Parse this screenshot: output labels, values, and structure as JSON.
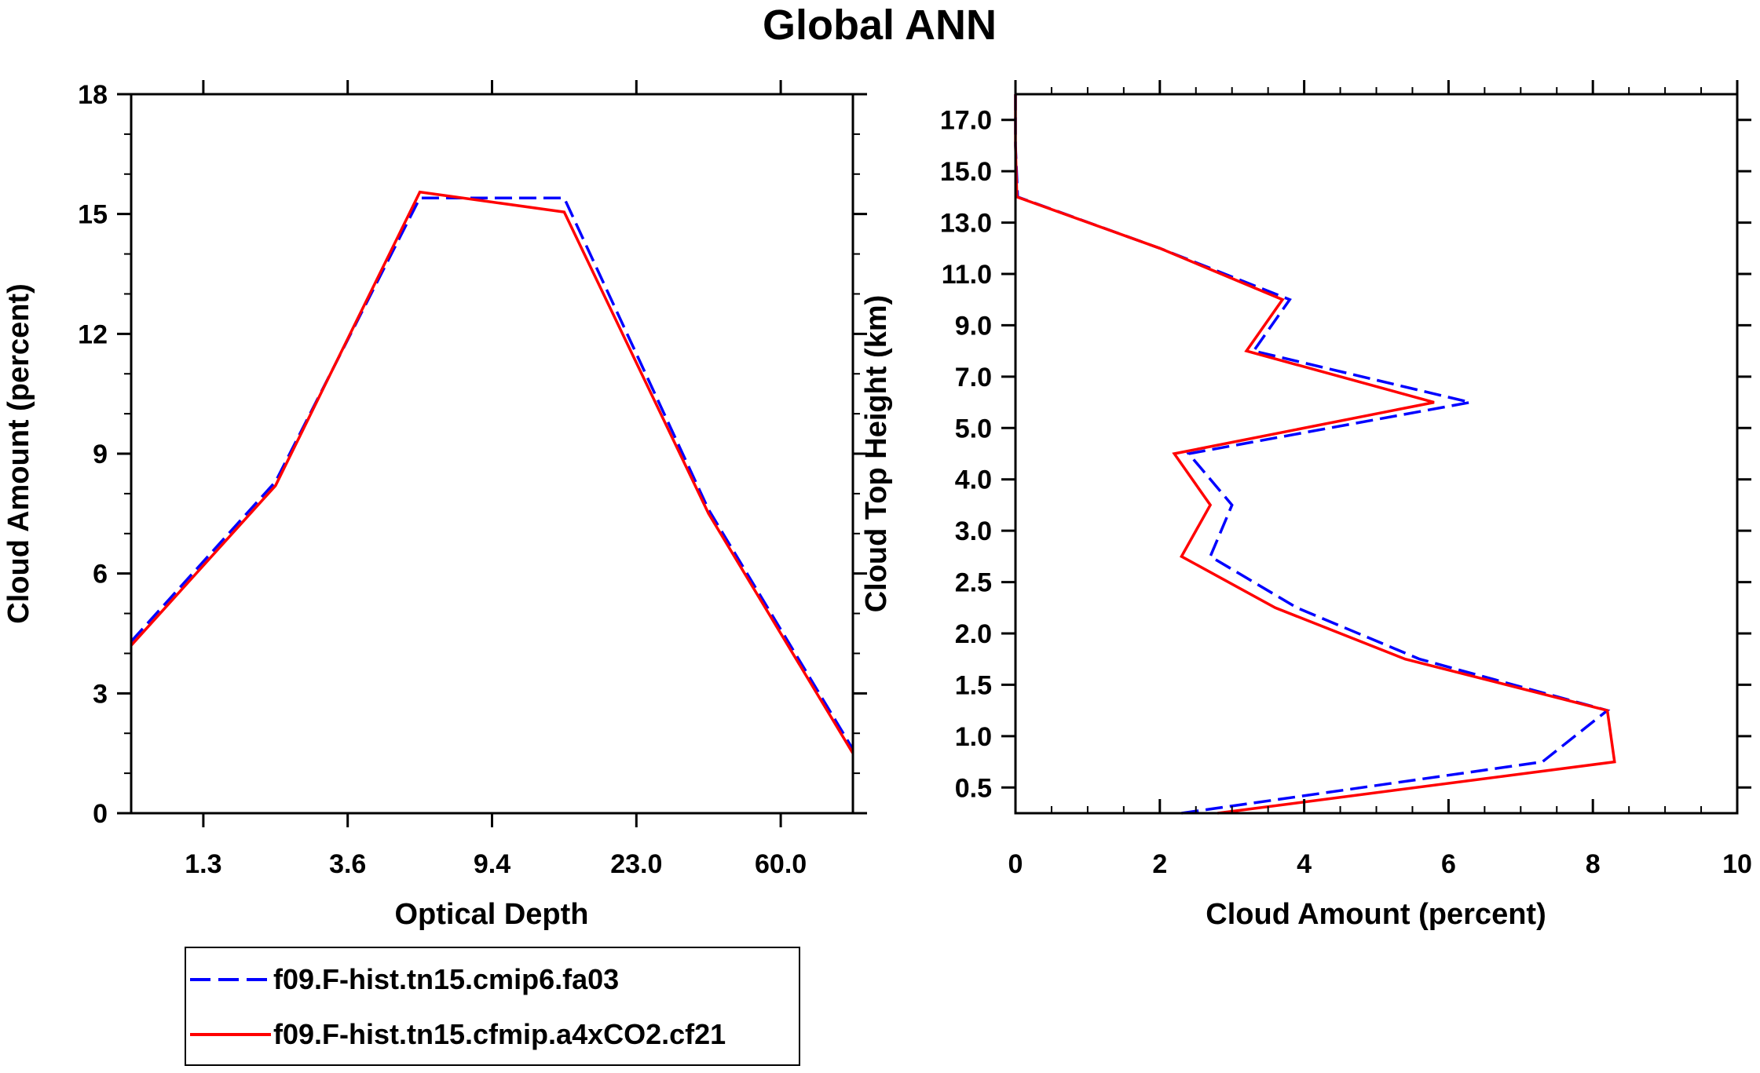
{
  "title": "Global ANN",
  "colors": {
    "series1": "#0000ff",
    "series2": "#ff0000",
    "axis": "#000000"
  },
  "legend": {
    "entries": [
      {
        "label": "f09.F-hist.tn15.cmip6.fa03",
        "style": "dashed",
        "color": "#0000ff"
      },
      {
        "label": "f09.F-hist.tn15.cfmip.a4xCO2.cf21",
        "style": "solid",
        "color": "#ff0000"
      }
    ]
  },
  "chart_data": [
    {
      "type": "line",
      "xlabel": "Optical Depth",
      "ylabel": "Cloud Amount (percent)",
      "x_positions": [
        0,
        1,
        2,
        3,
        4,
        5
      ],
      "xlim": [
        -0.5,
        4.5
      ],
      "x_ticks": [
        0,
        1,
        2,
        3,
        4
      ],
      "x_ticklabels": [
        "1.3",
        "3.6",
        "9.4",
        "23.0",
        "60.0"
      ],
      "ylim": [
        0,
        18
      ],
      "y_ticks": [
        0,
        3,
        6,
        9,
        12,
        15,
        18
      ],
      "y_ticklabels": [
        "0",
        "3",
        "6",
        "9",
        "12",
        "15",
        "18"
      ],
      "y_minor_step": 1,
      "x_points": [
        -0.5,
        0.5,
        1.5,
        2.5,
        3.5,
        4.5
      ],
      "series": [
        {
          "name": "f09.F-hist.tn15.cmip6.fa03",
          "values": [
            4.3,
            8.3,
            15.4,
            15.4,
            7.6,
            1.6
          ]
        },
        {
          "name": "f09.F-hist.tn15.cfmip.a4xCO2.cf21",
          "values": [
            4.2,
            8.2,
            15.55,
            15.05,
            7.5,
            1.5
          ]
        }
      ]
    },
    {
      "type": "line",
      "xlabel": "Cloud Amount (percent)",
      "ylabel": "Cloud Top Height (km)",
      "xlim": [
        0,
        10
      ],
      "x_ticks": [
        0,
        2,
        4,
        6,
        8,
        10
      ],
      "x_ticklabels": [
        "0",
        "2",
        "4",
        "6",
        "8",
        "10"
      ],
      "x_minor_step": 0.5,
      "ylim": [
        0,
        14
      ],
      "y_ticks": [
        0.5,
        1.5,
        2.5,
        3.5,
        4.5,
        5.5,
        6.5,
        7.5,
        8.5,
        9.5,
        10.5,
        11.5,
        12.5,
        13.5
      ],
      "y_ticklabels": [
        "0.5",
        "1.0",
        "1.5",
        "2.0",
        "2.5",
        "3.0",
        "4.0",
        "5.0",
        "7.0",
        "9.0",
        "11.0",
        "13.0",
        "15.0",
        "17.0"
      ],
      "y_points": [
        0,
        1,
        2,
        3,
        4,
        5,
        6,
        7,
        8,
        9,
        10,
        11,
        12,
        13,
        14
      ],
      "series": [
        {
          "name": "f09.F-hist.tn15.cmip6.fa03",
          "values": [
            2.3,
            7.3,
            8.2,
            5.6,
            3.9,
            2.7,
            3.0,
            2.4,
            6.3,
            3.3,
            3.8,
            2.0,
            0.03,
            0.0,
            0.0
          ]
        },
        {
          "name": "f09.F-hist.tn15.cfmip.a4xCO2.cf21",
          "values": [
            2.8,
            8.3,
            8.2,
            5.4,
            3.6,
            2.3,
            2.7,
            2.2,
            5.8,
            3.2,
            3.7,
            2.0,
            0.02,
            0.0,
            0.0
          ]
        }
      ]
    }
  ]
}
